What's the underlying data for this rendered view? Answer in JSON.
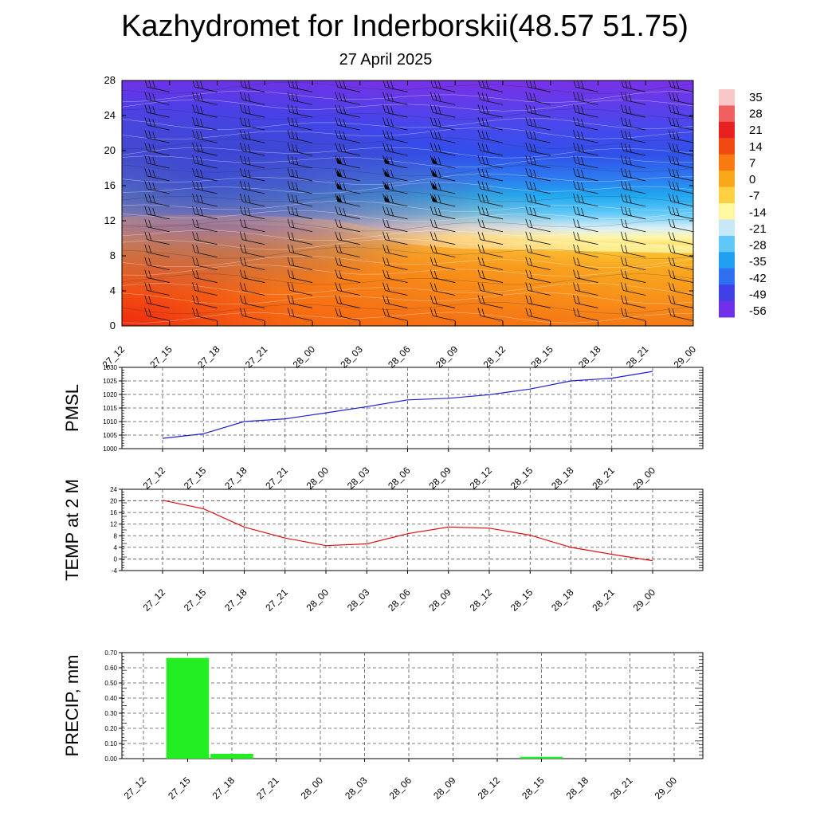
{
  "title": "Kazhydromet for Inderborskii(48.57 51.75)",
  "subtitle": "27 April 2025",
  "colors": {
    "pmsl_line": "#1f1fd0",
    "temp_line": "#e01010",
    "precip_bar": "#22ee22",
    "grid": "#555555"
  },
  "chart_data": [
    {
      "type": "heatmap",
      "name": "cross-section",
      "x_ticks": [
        "27_12",
        "27_15",
        "27_18",
        "27_21",
        "28_00",
        "28_03",
        "28_06",
        "28_09",
        "28_12",
        "28_15",
        "28_18",
        "28_21",
        "29_00"
      ],
      "y_ticks": [
        0,
        4,
        8,
        12,
        16,
        20,
        24,
        28
      ],
      "ylim": [
        0,
        28
      ],
      "colorbar_ticks": [
        35,
        28,
        21,
        14,
        7,
        0,
        -7,
        -14,
        -21,
        -28,
        -35,
        -42,
        -49,
        -56
      ],
      "colorbar_colors": [
        "#f8c8c8",
        "#f06060",
        "#e82020",
        "#f04a10",
        "#f87a10",
        "#f8a818",
        "#fcd040",
        "#fff8a0",
        "#c8e8f8",
        "#60c8f8",
        "#20a0f0",
        "#3070f0",
        "#4040e8",
        "#7030e8"
      ]
    },
    {
      "type": "line",
      "name": "pmsl",
      "ylabel": "PMSL",
      "x": [
        "27_12",
        "27_15",
        "27_18",
        "27_21",
        "28_00",
        "28_03",
        "28_06",
        "28_09",
        "28_12",
        "28_15",
        "28_18",
        "28_21",
        "29_00"
      ],
      "values": [
        1003.8,
        1005.5,
        1010.0,
        1011.0,
        1013.2,
        1015.5,
        1018.0,
        1018.6,
        1019.9,
        1022.0,
        1025.0,
        1026.0,
        1028.5
      ],
      "ylim": [
        1000,
        1030
      ],
      "y_ticks": [
        1000,
        1005,
        1010,
        1015,
        1020,
        1025,
        1030
      ],
      "grid": true
    },
    {
      "type": "line",
      "name": "temp",
      "ylabel": "TEMP at 2 M",
      "x": [
        "27_12",
        "27_15",
        "27_18",
        "27_21",
        "28_00",
        "28_03",
        "28_06",
        "28_09",
        "28_12",
        "28_15",
        "28_18",
        "28_21",
        "29_00"
      ],
      "values": [
        20.2,
        17.3,
        11.0,
        7.2,
        4.6,
        5.2,
        8.7,
        11.0,
        10.6,
        8.2,
        4.0,
        1.6,
        -0.6
      ],
      "ylim": [
        -4,
        24
      ],
      "y_ticks": [
        -4,
        0,
        4,
        8,
        12,
        16,
        20,
        24
      ],
      "grid": true
    },
    {
      "type": "bar",
      "name": "precip",
      "ylabel": "PRECIP, mm",
      "categories": [
        "27_12",
        "27_15",
        "27_18",
        "27_21",
        "28_00",
        "28_03",
        "28_06",
        "28_09",
        "28_12",
        "28_15",
        "28_18",
        "28_21",
        "29_00"
      ],
      "values": [
        0,
        0.665,
        0.032,
        0,
        0,
        0,
        0,
        0,
        0,
        0.012,
        0,
        0,
        0
      ],
      "ylim": [
        0,
        0.7
      ],
      "y_ticks": [
        "0.00",
        "0.10",
        "0.20",
        "0.30",
        "0.40",
        "0.50",
        "0.60",
        "0.70"
      ],
      "grid": true
    }
  ]
}
